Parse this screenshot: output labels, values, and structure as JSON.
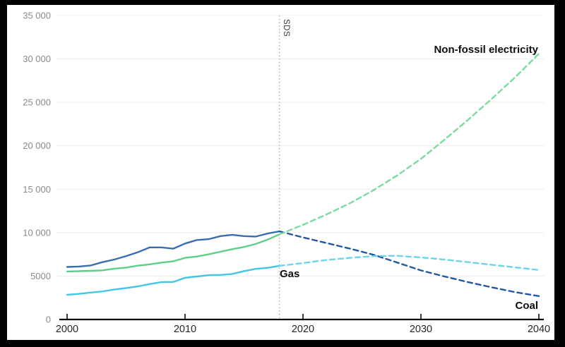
{
  "window": {
    "frame_color": "#000000",
    "canvas_color": "#ffffff"
  },
  "chart_data": {
    "type": "line",
    "title": "",
    "xlabel": "",
    "ylabel": "",
    "x_range": [
      2000,
      2040
    ],
    "y_range": [
      0,
      35000
    ],
    "grid": "horizontal",
    "gridline_color": "#ececec",
    "axis_color": "#0a0a0a",
    "ytick_values": [
      0,
      5000,
      10000,
      15000,
      20000,
      25000,
      30000,
      35000
    ],
    "ytick_labels": [
      "0",
      "5000",
      "10 000",
      "15 000",
      "20 000",
      "25 000",
      "30 000",
      "35 000"
    ],
    "xtick_values": [
      2000,
      2010,
      2020,
      2030,
      2040
    ],
    "xtick_labels": [
      "2000",
      "2010",
      "2020",
      "2030",
      "2040"
    ],
    "scenario_divider": {
      "label": "SDS",
      "year": 2018,
      "line_color": "#a6a6a6"
    },
    "legend_position": "inline-labels",
    "series_labels": {
      "nonfossil": "Non-fossil electricity",
      "gas": "Gas",
      "coal": "Coal"
    },
    "series": [
      {
        "id": "coal-history",
        "name": "Coal",
        "segment": "historical",
        "style": "solid",
        "color": "#3a6cb0",
        "years": [
          2000,
          2001,
          2002,
          2003,
          2004,
          2005,
          2006,
          2007,
          2008,
          2009,
          2010,
          2011,
          2012,
          2013,
          2014,
          2015,
          2016,
          2017,
          2018
        ],
        "values": [
          6050,
          6100,
          6220,
          6600,
          6900,
          7300,
          7750,
          8300,
          8300,
          8150,
          8750,
          9150,
          9250,
          9600,
          9750,
          9600,
          9550,
          9900,
          10150
        ]
      },
      {
        "id": "coal-projection",
        "name": "Coal",
        "segment": "SDS projection",
        "style": "dashed",
        "color": "#2456a4",
        "years": [
          2018,
          2020,
          2022,
          2024,
          2026,
          2028,
          2030,
          2032,
          2034,
          2036,
          2038,
          2040
        ],
        "values": [
          10150,
          9450,
          8800,
          8150,
          7450,
          6550,
          5650,
          4950,
          4300,
          3700,
          3150,
          2700
        ]
      },
      {
        "id": "nonfossil-history",
        "name": "Non-fossil electricity",
        "segment": "historical",
        "style": "solid",
        "color": "#5fcf87",
        "years": [
          2000,
          2001,
          2002,
          2003,
          2004,
          2005,
          2006,
          2007,
          2008,
          2009,
          2010,
          2011,
          2012,
          2013,
          2014,
          2015,
          2016,
          2017,
          2018
        ],
        "values": [
          5530,
          5560,
          5600,
          5660,
          5850,
          5980,
          6200,
          6350,
          6550,
          6700,
          7100,
          7250,
          7500,
          7800,
          8100,
          8350,
          8700,
          9200,
          9800
        ]
      },
      {
        "id": "nonfossil-projection",
        "name": "Non-fossil electricity",
        "segment": "SDS projection",
        "style": "dashed",
        "color": "#79dc9f",
        "years": [
          2018,
          2020,
          2022,
          2024,
          2026,
          2028,
          2030,
          2032,
          2034,
          2036,
          2038,
          2040
        ],
        "values": [
          9800,
          10900,
          12100,
          13400,
          14900,
          16600,
          18500,
          20700,
          23000,
          25400,
          27900,
          30600
        ]
      },
      {
        "id": "gas-history",
        "name": "Gas",
        "segment": "historical",
        "style": "solid",
        "color": "#41c7e2",
        "years": [
          2000,
          2001,
          2002,
          2003,
          2004,
          2005,
          2006,
          2007,
          2008,
          2009,
          2010,
          2011,
          2012,
          2013,
          2014,
          2015,
          2016,
          2017,
          2018
        ],
        "values": [
          2850,
          2950,
          3100,
          3230,
          3450,
          3620,
          3820,
          4080,
          4300,
          4330,
          4800,
          4950,
          5100,
          5130,
          5250,
          5570,
          5830,
          5950,
          6180
        ]
      },
      {
        "id": "gas-projection",
        "name": "Gas",
        "segment": "SDS projection",
        "style": "dashed",
        "color": "#6cd5ea",
        "years": [
          2018,
          2020,
          2022,
          2024,
          2026,
          2028,
          2030,
          2032,
          2034,
          2036,
          2038,
          2040
        ],
        "values": [
          6180,
          6500,
          6850,
          7100,
          7300,
          7330,
          7150,
          6900,
          6600,
          6300,
          6000,
          5700
        ]
      }
    ]
  }
}
